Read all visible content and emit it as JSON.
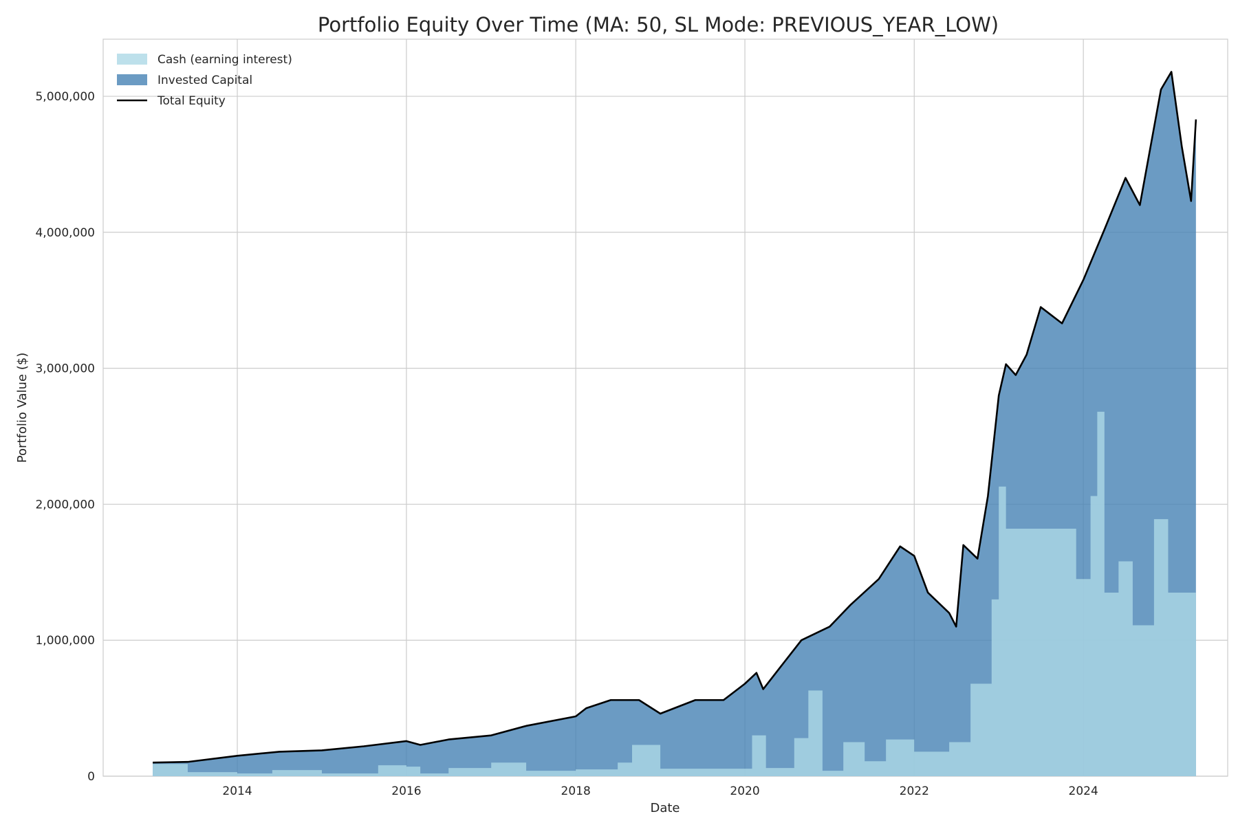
{
  "chart_data": {
    "type": "area",
    "title": "Portfolio Equity Over Time (MA: 50, SL Mode: PREVIOUS_YEAR_LOW)",
    "xlabel": "Date",
    "ylabel": "Portfolio Value ($)",
    "xlim": [
      "2012-06-01",
      "2025-09-15"
    ],
    "ylim": [
      0,
      5420000
    ],
    "x_ticks": [
      "2014",
      "2016",
      "2018",
      "2020",
      "2022",
      "2024"
    ],
    "x_tick_dates": [
      "2014-01-01",
      "2016-01-01",
      "2018-01-01",
      "2020-01-01",
      "2022-01-01",
      "2024-01-01"
    ],
    "y_ticks": [
      0,
      1000000,
      2000000,
      3000000,
      4000000,
      5000000
    ],
    "y_tick_labels": [
      "0",
      "1,000,000",
      "2,000,000",
      "3,000,000",
      "4,000,000",
      "5,000,000"
    ],
    "grid": true,
    "legend_position": "top-left",
    "legend": [
      {
        "label": "Cash (earning interest)",
        "kind": "area",
        "color": "#add8e6"
      },
      {
        "label": "Invested Capital",
        "kind": "area",
        "color": "#4682b4"
      },
      {
        "label": "Total Equity",
        "kind": "line",
        "color": "#000000"
      }
    ],
    "series": [
      {
        "name": "Total Equity",
        "color": "#000000",
        "points": [
          [
            "2013-01-01",
            100000
          ],
          [
            "2013-06-01",
            105000
          ],
          [
            "2014-01-01",
            150000
          ],
          [
            "2014-07-01",
            180000
          ],
          [
            "2015-01-01",
            190000
          ],
          [
            "2015-07-01",
            220000
          ],
          [
            "2016-01-01",
            258000
          ],
          [
            "2016-03-01",
            230000
          ],
          [
            "2016-07-01",
            270000
          ],
          [
            "2017-01-01",
            300000
          ],
          [
            "2017-06-01",
            370000
          ],
          [
            "2018-01-01",
            440000
          ],
          [
            "2018-02-15",
            500000
          ],
          [
            "2018-06-01",
            560000
          ],
          [
            "2018-10-01",
            560000
          ],
          [
            "2019-01-01",
            460000
          ],
          [
            "2019-06-01",
            560000
          ],
          [
            "2019-10-01",
            560000
          ],
          [
            "2020-01-01",
            680000
          ],
          [
            "2020-02-20",
            760000
          ],
          [
            "2020-03-20",
            640000
          ],
          [
            "2020-06-01",
            800000
          ],
          [
            "2020-09-01",
            1000000
          ],
          [
            "2021-01-01",
            1100000
          ],
          [
            "2021-04-01",
            1260000
          ],
          [
            "2021-08-01",
            1450000
          ],
          [
            "2021-11-01",
            1690000
          ],
          [
            "2022-01-01",
            1620000
          ],
          [
            "2022-03-01",
            1350000
          ],
          [
            "2022-06-01",
            1200000
          ],
          [
            "2022-07-01",
            1100000
          ],
          [
            "2022-08-01",
            1700000
          ],
          [
            "2022-10-01",
            1600000
          ],
          [
            "2022-11-15",
            2060000
          ],
          [
            "2023-01-01",
            2800000
          ],
          [
            "2023-02-01",
            3030000
          ],
          [
            "2023-03-15",
            2950000
          ],
          [
            "2023-05-01",
            3100000
          ],
          [
            "2023-07-01",
            3450000
          ],
          [
            "2023-10-01",
            3330000
          ],
          [
            "2024-01-01",
            3650000
          ],
          [
            "2024-04-01",
            4020000
          ],
          [
            "2024-07-01",
            4400000
          ],
          [
            "2024-09-01",
            4200000
          ],
          [
            "2024-12-01",
            5050000
          ],
          [
            "2025-01-15",
            5180000
          ],
          [
            "2025-03-01",
            4630000
          ],
          [
            "2025-04-10",
            4230000
          ],
          [
            "2025-05-01",
            4830000
          ]
        ]
      },
      {
        "name": "Cash (earning interest)",
        "color": "#add8e6",
        "points": [
          [
            "2013-01-01",
            90000
          ],
          [
            "2013-06-01",
            30000
          ],
          [
            "2014-01-01",
            20000
          ],
          [
            "2014-06-01",
            45000
          ],
          [
            "2015-01-01",
            20000
          ],
          [
            "2015-09-01",
            80000
          ],
          [
            "2016-01-01",
            70000
          ],
          [
            "2016-03-01",
            20000
          ],
          [
            "2016-07-01",
            60000
          ],
          [
            "2017-01-01",
            100000
          ],
          [
            "2017-06-01",
            40000
          ],
          [
            "2018-01-01",
            50000
          ],
          [
            "2018-07-01",
            100000
          ],
          [
            "2018-09-01",
            230000
          ],
          [
            "2019-01-01",
            55000
          ],
          [
            "2020-01-01",
            55000
          ],
          [
            "2020-02-01",
            300000
          ],
          [
            "2020-04-01",
            60000
          ],
          [
            "2020-08-01",
            280000
          ],
          [
            "2020-10-01",
            630000
          ],
          [
            "2020-12-01",
            40000
          ],
          [
            "2021-03-01",
            250000
          ],
          [
            "2021-06-01",
            110000
          ],
          [
            "2021-09-01",
            270000
          ],
          [
            "2022-01-01",
            180000
          ],
          [
            "2022-06-01",
            250000
          ],
          [
            "2022-09-01",
            680000
          ],
          [
            "2022-12-01",
            1300000
          ],
          [
            "2023-01-01",
            2130000
          ],
          [
            "2023-02-01",
            1820000
          ],
          [
            "2023-12-01",
            1450000
          ],
          [
            "2024-02-01",
            2060000
          ],
          [
            "2024-03-01",
            2680000
          ],
          [
            "2024-04-01",
            1350000
          ],
          [
            "2024-06-01",
            1580000
          ],
          [
            "2024-08-01",
            1110000
          ],
          [
            "2024-11-01",
            1890000
          ],
          [
            "2025-01-01",
            1350000
          ],
          [
            "2025-05-01",
            1360000
          ]
        ]
      },
      {
        "name": "Invested Capital",
        "color": "#4682b4",
        "note": "stacked area = Total Equity minus Cash"
      }
    ]
  }
}
